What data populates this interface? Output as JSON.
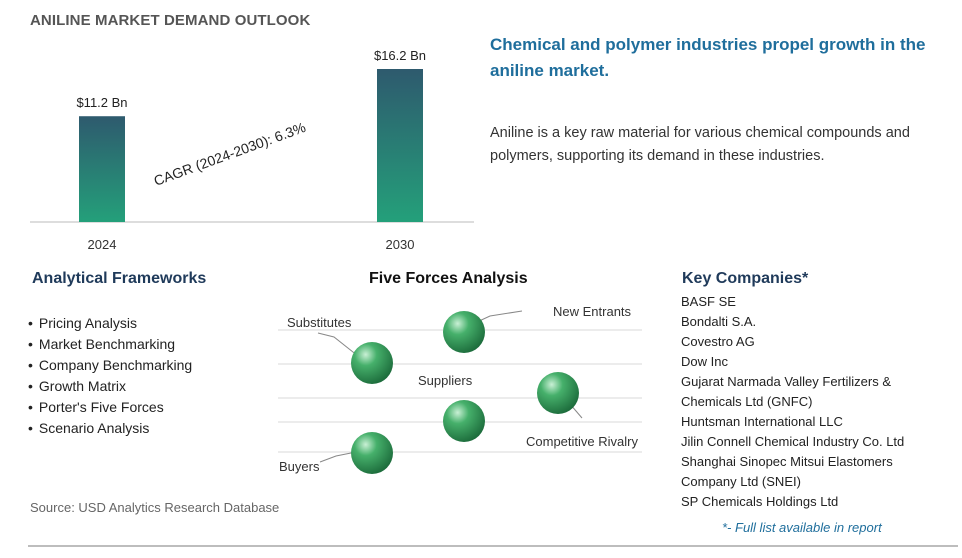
{
  "header": {
    "title": "ANILINE MARKET DEMAND OUTLOOK"
  },
  "chart_data": {
    "type": "bar",
    "categories": [
      "2024",
      "2030"
    ],
    "values": [
      11.2,
      16.2
    ],
    "value_labels": [
      "$11.2 Bn",
      "$16.2 Bn"
    ],
    "ylim": [
      0,
      18
    ],
    "cagr_label": "CAGR (2024-2030):  6.3%",
    "bar_color_top": "#2e5a6e",
    "bar_color_bottom": "#24a07a",
    "grid": false
  },
  "headline": "Chemical and polymer industries propel growth in the aniline market.",
  "description": "Aniline is a key raw material for various chemical compounds and polymers, supporting its demand in these industries.",
  "analytical_frameworks": {
    "title": "Analytical Frameworks",
    "items": [
      "Pricing Analysis",
      "Market Benchmarking",
      "Company Benchmarking",
      "Growth Matrix",
      "Porter's Five Forces",
      "Scenario Analysis"
    ]
  },
  "five_forces": {
    "title": "Five Forces Analysis",
    "labels": [
      "Substitutes",
      "New Entrants",
      "Suppliers",
      "Competitive Rivalry",
      "Buyers"
    ],
    "sphere_color": "#2e8b57"
  },
  "key_companies": {
    "title": "Key Companies*",
    "items": [
      "BASF SE",
      "Bondalti S.A.",
      "Covestro AG",
      "Dow Inc",
      "Gujarat Narmada Valley Fertilizers &",
      "Chemicals Ltd (GNFC)",
      "Huntsman International LLC",
      "Jilin Connell Chemical Industry Co. Ltd",
      "Shanghai Sinopec Mitsui Elastomers",
      "Company Ltd (SNEI)",
      "SP Chemicals Holdings Ltd"
    ],
    "note": "*- Full list available in report"
  },
  "source": "Source: USD Analytics Research Database"
}
